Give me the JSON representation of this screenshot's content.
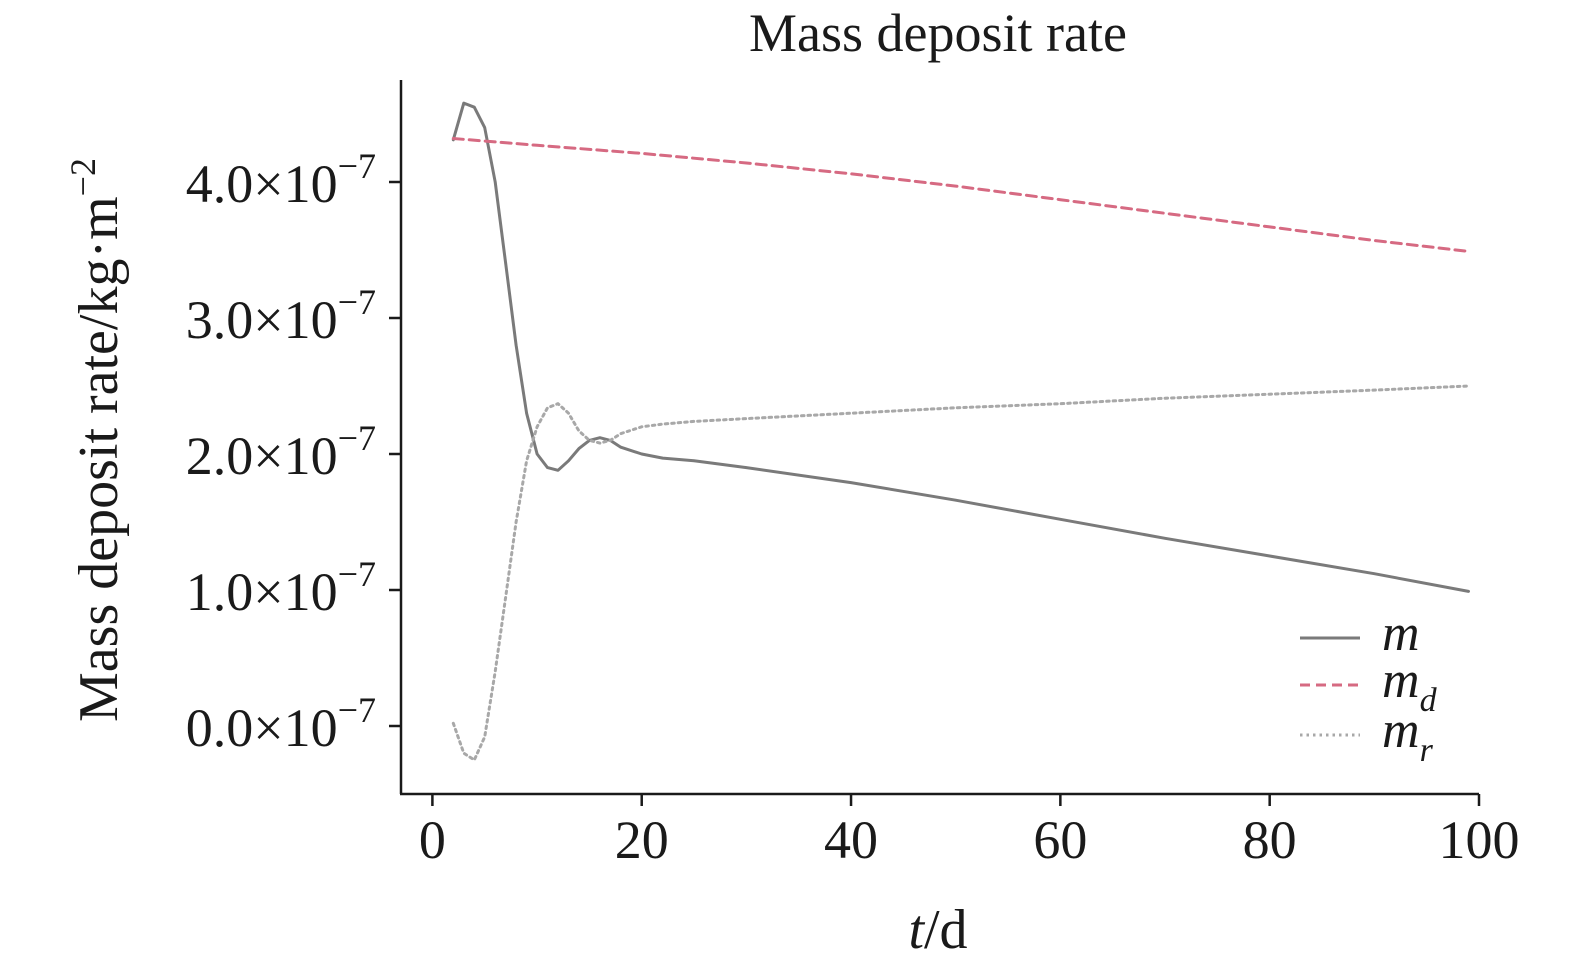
{
  "chart_data": {
    "type": "line",
    "title": "Mass deposit rate",
    "xlabel": {
      "var": "t",
      "unit": "/d"
    },
    "ylabel": {
      "text": "Mass deposit rate/kg·m",
      "exp": "−2"
    },
    "xlim": [
      -3,
      100
    ],
    "ylim": [
      -0.5,
      4.75
    ],
    "xticks": [
      "0",
      "20",
      "40",
      "60",
      "80",
      "100"
    ],
    "yticks": [
      {
        "mantissa": "0.0",
        "rest": "×10",
        "exp": "−7"
      },
      {
        "mantissa": "1.0",
        "rest": "×10",
        "exp": "−7"
      },
      {
        "mantissa": "2.0",
        "rest": "×10",
        "exp": "−7"
      },
      {
        "mantissa": "3.0",
        "rest": "×10",
        "exp": "−7"
      },
      {
        "mantissa": "4.0",
        "rest": "×10",
        "exp": "−7"
      }
    ],
    "y_unit_scale": "1e-7",
    "grid": false,
    "legend_position": "bottom-right",
    "series": [
      {
        "name": "m",
        "sub": "",
        "color": "#7a7a7a",
        "style": "solid",
        "x": [
          2,
          3,
          4,
          5,
          6,
          7,
          8,
          9,
          10,
          11,
          12,
          13,
          14,
          15,
          16,
          17,
          18,
          20,
          22,
          25,
          30,
          40,
          50,
          60,
          70,
          80,
          90,
          99
        ],
        "y": [
          4.31,
          4.58,
          4.55,
          4.4,
          4.0,
          3.4,
          2.8,
          2.3,
          2.0,
          1.9,
          1.88,
          1.95,
          2.04,
          2.1,
          2.12,
          2.1,
          2.05,
          2.0,
          1.97,
          1.95,
          1.9,
          1.79,
          1.66,
          1.52,
          1.38,
          1.25,
          1.12,
          0.99
        ]
      },
      {
        "name": "m",
        "sub": "d",
        "color": "#d66a82",
        "style": "dashed",
        "x": [
          2,
          10,
          20,
          30,
          40,
          50,
          60,
          70,
          80,
          90,
          99
        ],
        "y": [
          4.32,
          4.27,
          4.21,
          4.14,
          4.06,
          3.97,
          3.87,
          3.77,
          3.67,
          3.57,
          3.49
        ]
      },
      {
        "name": "m",
        "sub": "r",
        "color": "#a8a8a8",
        "style": "dotted",
        "x": [
          2,
          3,
          4,
          5,
          6,
          7,
          8,
          9,
          10,
          11,
          12,
          13,
          14,
          15,
          16,
          17,
          18,
          20,
          22,
          25,
          30,
          40,
          50,
          60,
          70,
          80,
          90,
          99
        ],
        "y": [
          0.02,
          -0.2,
          -0.25,
          -0.08,
          0.4,
          0.95,
          1.5,
          1.95,
          2.2,
          2.34,
          2.37,
          2.3,
          2.17,
          2.1,
          2.08,
          2.1,
          2.15,
          2.2,
          2.22,
          2.24,
          2.26,
          2.3,
          2.34,
          2.37,
          2.41,
          2.44,
          2.47,
          2.5
        ]
      }
    ]
  }
}
